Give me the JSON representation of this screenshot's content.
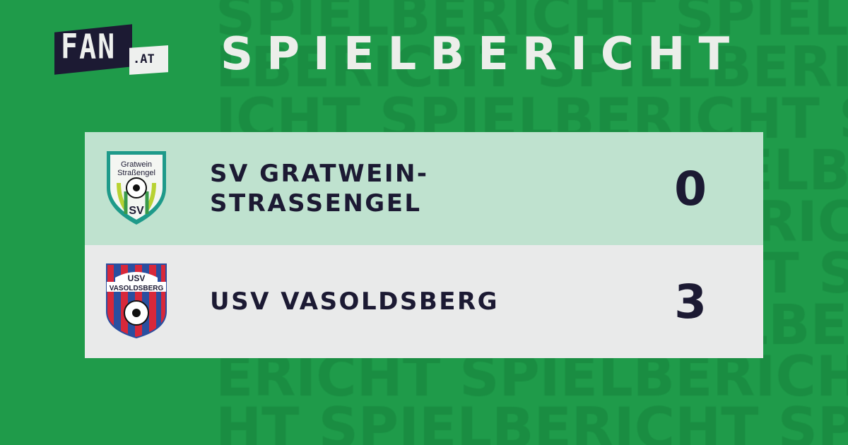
{
  "background_word": "SPIELBERICHT",
  "colors": {
    "background": "#1f9b4a",
    "navy": "#1c1a33",
    "home_row": "#bfe2cf",
    "away_row": "#e9eaea"
  },
  "logo": {
    "main": "FAN",
    "suffix": ".AT"
  },
  "title": "SPIELBERICHT",
  "match": {
    "home": {
      "name": "SV GRATWEIN-\nSTRASSENGEL",
      "score": "0",
      "crest_text": [
        "Gratwein",
        "Straßengel",
        "SV"
      ]
    },
    "away": {
      "name": "USV VASOLDSBERG",
      "score": "3",
      "crest_text": [
        "USV",
        "VASOLDSBERG"
      ]
    }
  }
}
